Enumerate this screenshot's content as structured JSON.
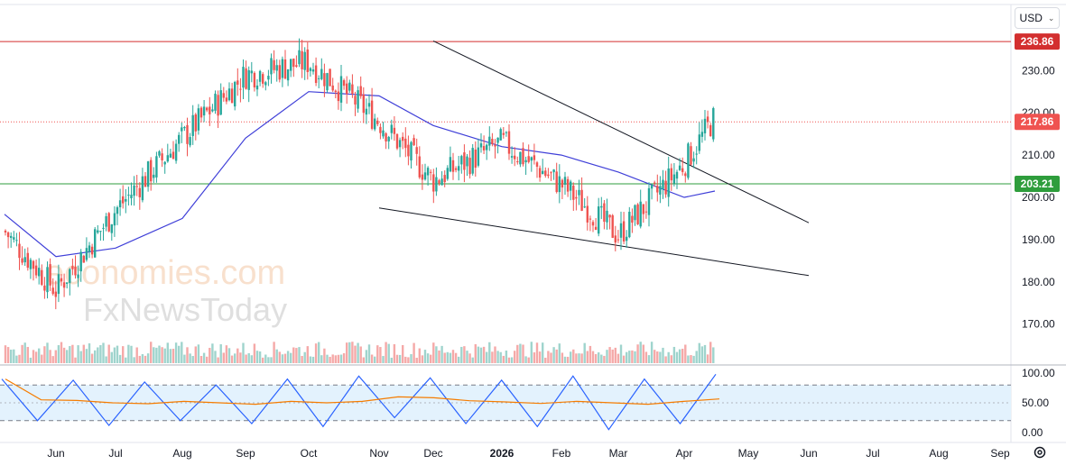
{
  "toolbar": {
    "currency": "USD"
  },
  "colors": {
    "up": "#26a69a",
    "down": "#ef5350",
    "ma": "#3f3fd8",
    "resistance": "#d32f2f",
    "support": "#2e9d3c",
    "last_price": "#ef5350",
    "volume_up": "#9fd4cd",
    "volume_down": "#f5a9a8",
    "stoch_k": "#2962ff",
    "stoch_d": "#f57c00"
  },
  "watermark": {
    "line1": "economies.com",
    "line2": "FxNewsToday"
  },
  "chart_data": {
    "type": "candlestick",
    "price_axis": {
      "ticks": [
        "230.00",
        "220.00",
        "210.00",
        "200.00",
        "190.00",
        "180.00",
        "170.00"
      ],
      "range": [
        163,
        241
      ]
    },
    "time_axis": {
      "labels": [
        "Jun",
        "Jul",
        "Aug",
        "Sep",
        "Oct",
        "Nov",
        "Dec",
        "2026",
        "Feb",
        "Mar",
        "Apr",
        "May",
        "Jun",
        "Jul",
        "Aug",
        "Sep"
      ]
    },
    "price_labels": [
      {
        "value": "236.86",
        "role": "resistance"
      },
      {
        "value": "217.86",
        "role": "last-price"
      },
      {
        "value": "203.21",
        "role": "support"
      }
    ],
    "horizontal_lines": [
      {
        "value": 236.86,
        "style": "solid",
        "role": "resistance"
      },
      {
        "value": 217.86,
        "style": "dotted",
        "role": "last-price"
      },
      {
        "value": 203.21,
        "style": "solid",
        "role": "support"
      }
    ],
    "trend_lines": [
      {
        "from": [
          "Dec",
          237
        ],
        "to": [
          "Jun",
          194
        ],
        "role": "upper"
      },
      {
        "from": [
          "Nov",
          197.5
        ],
        "to": [
          "Jun",
          181.5
        ],
        "role": "lower"
      }
    ],
    "price_path": [
      {
        "month": "May",
        "value": 192
      },
      {
        "month": "Jun",
        "value": 178
      },
      {
        "month": "Jul",
        "value": 197
      },
      {
        "month": "Aug",
        "value": 214
      },
      {
        "month": "Sep",
        "value": 229
      },
      {
        "month": "Oct",
        "value": 232
      },
      {
        "month": "Nov",
        "value": 218
      },
      {
        "month": "Dec",
        "value": 204
      },
      {
        "month": "2026",
        "value": 213
      },
      {
        "month": "Feb",
        "value": 203
      },
      {
        "month": "Mar",
        "value": 191
      },
      {
        "month": "Apr",
        "value": 208
      },
      {
        "month": "Apr-mid",
        "value": 219
      }
    ],
    "moving_average": [
      {
        "month": "May",
        "value": 196
      },
      {
        "month": "Jun",
        "value": 186
      },
      {
        "month": "Jul",
        "value": 188
      },
      {
        "month": "Aug",
        "value": 195
      },
      {
        "month": "Sep",
        "value": 214
      },
      {
        "month": "Oct",
        "value": 225
      },
      {
        "month": "Nov",
        "value": 224
      },
      {
        "month": "Dec",
        "value": 217
      },
      {
        "month": "2026",
        "value": 212
      },
      {
        "month": "Feb",
        "value": 210
      },
      {
        "month": "Mar",
        "value": 206
      },
      {
        "month": "Apr",
        "value": 200
      },
      {
        "month": "Apr-mid",
        "value": 201.5
      }
    ],
    "oscillator": {
      "ticks": [
        "100.00",
        "50.00",
        "0.00"
      ],
      "range": [
        0,
        100
      ],
      "bands": [
        20,
        80
      ],
      "k_path": [
        90,
        20,
        88,
        12,
        85,
        20,
        80,
        15,
        90,
        10,
        95,
        25,
        92,
        15,
        88,
        10,
        95,
        5,
        90,
        15,
        98
      ]
    }
  }
}
